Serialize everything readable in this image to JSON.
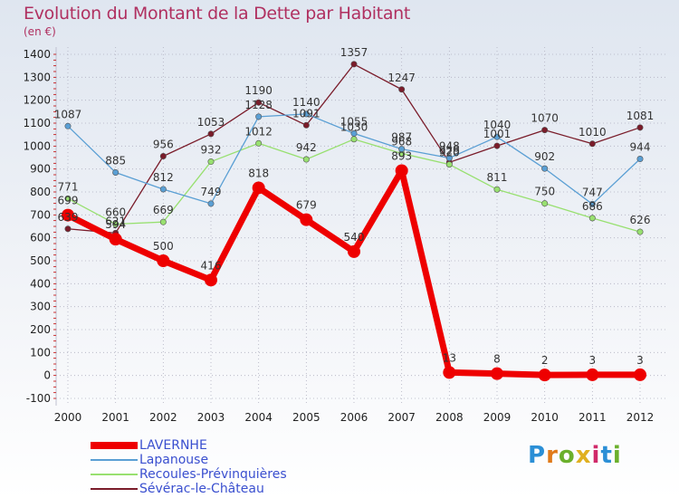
{
  "page": {
    "title": "Evolution du Montant de la Dette par Habitant",
    "subtitle": "(en €)",
    "logo_text": "Proxiti"
  },
  "colors": {
    "title": "#b03060",
    "legend_text": "#3a4fcf",
    "grid": "#b0b0c0"
  },
  "chart_data": {
    "type": "line",
    "x": [
      "2000",
      "2001",
      "2002",
      "2003",
      "2004",
      "2005",
      "2006",
      "2007",
      "2008",
      "2009",
      "2010",
      "2011",
      "2012"
    ],
    "ylim": [
      -100,
      1400
    ],
    "yticks": [
      -100,
      0,
      100,
      200,
      300,
      400,
      500,
      600,
      700,
      800,
      900,
      1000,
      1100,
      1200,
      1300,
      1400
    ],
    "grid": true,
    "legend_position": "bottom-left",
    "series": [
      {
        "name": "Sévérac-le-Château",
        "color": "#7a1c2a",
        "width": 1.3,
        "values": [
          639,
          621,
          956,
          1053,
          1190,
          1091,
          1357,
          1247,
          929,
          1001,
          1070,
          1010,
          1081
        ]
      },
      {
        "name": "Recoules-Prévinquières",
        "color": "#98e070",
        "width": 1.3,
        "values": [
          771,
          660,
          669,
          932,
          1012,
          942,
          1030,
          968,
          920,
          811,
          750,
          686,
          626
        ]
      },
      {
        "name": "Lapanouse",
        "color": "#5a9fd4",
        "width": 1.3,
        "values": [
          1087,
          885,
          812,
          749,
          1128,
          1140,
          1055,
          987,
          948,
          1040,
          902,
          747,
          944
        ]
      },
      {
        "name": "LAVERNHE",
        "color": "#ee0000",
        "width": 7,
        "values": [
          699,
          594,
          500,
          416,
          818,
          679,
          540,
          893,
          13,
          8,
          2,
          3,
          3
        ]
      }
    ]
  },
  "legend": [
    {
      "name": "LAVERNHE",
      "color": "#ee0000",
      "thickness": 8
    },
    {
      "name": "Lapanouse",
      "color": "#5a9fd4",
      "thickness": 2
    },
    {
      "name": "Recoules-Prévinquières",
      "color": "#98e070",
      "thickness": 2
    },
    {
      "name": "Sévérac-le-Château",
      "color": "#7a1c2a",
      "thickness": 2
    }
  ]
}
